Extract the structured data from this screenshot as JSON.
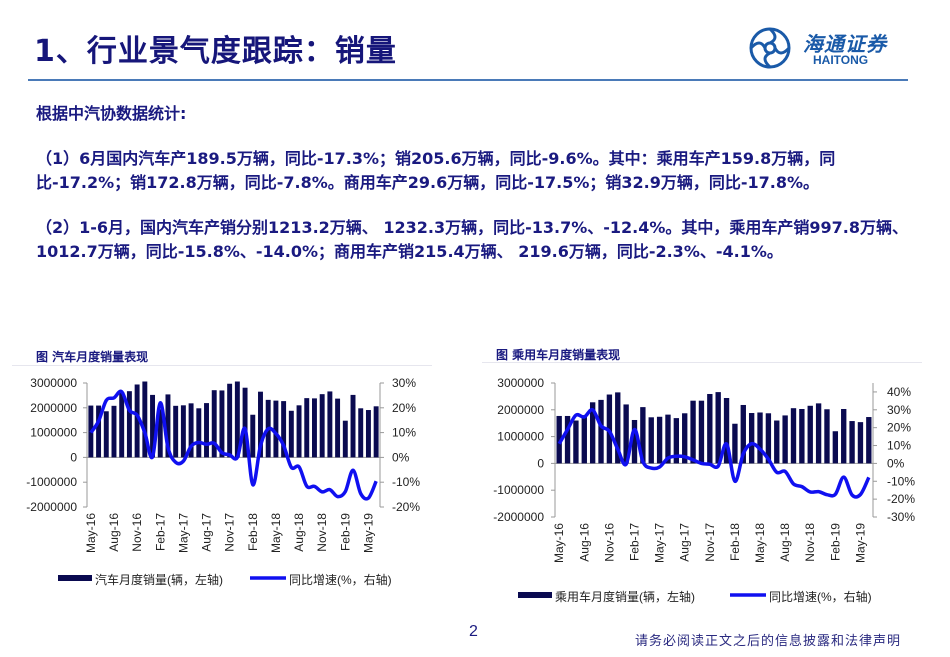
{
  "header": {
    "title": "1、行业景气度跟踪：销量",
    "logo_cn": "海通证券",
    "logo_en": "HAITONG"
  },
  "body": {
    "intro": "根据中汽协数据统计:",
    "para1": "（1）6月国内汽车产189.5万辆，同比-17.3%；销205.6万辆，同比-9.6%。其中：乘用车产159.8万辆，同比-17.2%；销172.8万辆，同比-7.8%。商用车产29.6万辆，同比-17.5%；销32.9万辆，同比-17.8%。",
    "para2": "（2）1-6月，国内汽车产销分别1213.2万辆、 1232.3万辆，同比-13.7%、-12.4%。其中，乘用车产销997.8万辆、1012.7万辆，同比-15.8%、-14.0%；商用车产销215.4万辆、 219.6万辆，同比-2.3%、-4.1%。"
  },
  "colors": {
    "bar": "#0a0a50",
    "line": "#1010f0",
    "text": "#1a1a80",
    "rule": "#4a7ab8"
  },
  "chart_data": [
    {
      "type": "bar+line",
      "title": "图 汽车月度销量表现",
      "categories": [
        "May-16",
        "Jun-16",
        "Jul-16",
        "Aug-16",
        "Sep-16",
        "Oct-16",
        "Nov-16",
        "Dec-16",
        "Jan-17",
        "Feb-17",
        "Mar-17",
        "Apr-17",
        "May-17",
        "Jun-17",
        "Jul-17",
        "Aug-17",
        "Sep-17",
        "Oct-17",
        "Nov-17",
        "Dec-17",
        "Jan-18",
        "Feb-18",
        "Mar-18",
        "Apr-18",
        "May-18",
        "Jun-18",
        "Jul-18",
        "Aug-18",
        "Sep-18",
        "Oct-18",
        "Nov-18",
        "Dec-18",
        "Jan-19",
        "Feb-19",
        "Mar-19",
        "Apr-19",
        "May-19",
        "Jun-19"
      ],
      "x_tick_labels": [
        "May-16",
        "Aug-16",
        "Nov-16",
        "Feb-17",
        "May-17",
        "Aug-17",
        "Nov-17",
        "Feb-18",
        "May-18",
        "Aug-18",
        "Nov-18",
        "Feb-19",
        "May-19"
      ],
      "series": [
        {
          "name": "汽车月度销量(辆，左轴)",
          "type": "bar",
          "axis": "left",
          "values": [
            2090000,
            2090000,
            1860000,
            2080000,
            2630000,
            2670000,
            2940000,
            3060000,
            2520000,
            1940000,
            2540000,
            2080000,
            2100000,
            2180000,
            1980000,
            2190000,
            2710000,
            2700000,
            2970000,
            3060000,
            2810000,
            1720000,
            2650000,
            2320000,
            2290000,
            2270000,
            1880000,
            2100000,
            2390000,
            2380000,
            2550000,
            2660000,
            2370000,
            1480000,
            2520000,
            1980000,
            1910000,
            2060000
          ]
        },
        {
          "name": "同比增速(%，右轴)",
          "type": "line",
          "axis": "right",
          "values": [
            10,
            14.6,
            23,
            24,
            26.5,
            19,
            17,
            10,
            0.2,
            22,
            4,
            -2,
            -1.5,
            4.5,
            6,
            5.3,
            5.7,
            1.9,
            1,
            0,
            11.6,
            -11,
            4.7,
            11.5,
            9.6,
            4.8,
            -4,
            -3.8,
            -11.6,
            -11.7,
            -13.9,
            -13,
            -15.8,
            -13.8,
            -5.2,
            -14.6,
            -16.4,
            -9.6
          ]
        }
      ],
      "left_axis": {
        "range": [
          -2000000,
          3000000
        ],
        "ticks": [
          "3000000",
          "2000000",
          "1000000",
          "0",
          "-1000000",
          "-2000000"
        ]
      },
      "right_axis": {
        "range": [
          -20,
          30
        ],
        "ticks": [
          "30%",
          "20%",
          "10%",
          "0%",
          "-10%",
          "-20%"
        ]
      },
      "legend": "bottom"
    },
    {
      "type": "bar+line",
      "title": "图 乘用车月度销量表现",
      "categories": [
        "May-16",
        "Jun-16",
        "Jul-16",
        "Aug-16",
        "Sep-16",
        "Oct-16",
        "Nov-16",
        "Dec-16",
        "Jan-17",
        "Feb-17",
        "Mar-17",
        "Apr-17",
        "May-17",
        "Jun-17",
        "Jul-17",
        "Aug-17",
        "Sep-17",
        "Oct-17",
        "Nov-17",
        "Dec-17",
        "Jan-18",
        "Feb-18",
        "Mar-18",
        "Apr-18",
        "May-18",
        "Jun-18",
        "Jul-18",
        "Aug-18",
        "Sep-18",
        "Oct-18",
        "Nov-18",
        "Dec-18",
        "Jan-19",
        "Feb-19",
        "Mar-19",
        "Apr-19",
        "May-19",
        "Jun-19"
      ],
      "x_tick_labels": [
        "May-16",
        "Aug-16",
        "Nov-16",
        "Feb-17",
        "May-17",
        "Aug-17",
        "Nov-17",
        "Feb-18",
        "May-18",
        "Aug-18",
        "Nov-18",
        "Feb-19",
        "May-19"
      ],
      "series": [
        {
          "name": "乘用车月度销量(辆，左轴)",
          "type": "bar",
          "axis": "left",
          "values": [
            1770000,
            1770000,
            1600000,
            1800000,
            2280000,
            2370000,
            2570000,
            2650000,
            2200000,
            1620000,
            2100000,
            1720000,
            1740000,
            1820000,
            1690000,
            1870000,
            2340000,
            2340000,
            2590000,
            2660000,
            2440000,
            1480000,
            2180000,
            1880000,
            1900000,
            1870000,
            1600000,
            1790000,
            2060000,
            2030000,
            2150000,
            2240000,
            2020000,
            1200000,
            2030000,
            1580000,
            1540000,
            1730000
          ]
        },
        {
          "name": "同比增速(%，右轴)",
          "type": "line",
          "axis": "right",
          "values": [
            11,
            19,
            27,
            26,
            30,
            21,
            18,
            8,
            -0.5,
            19,
            1,
            -2.6,
            -2,
            3,
            4,
            3.7,
            2,
            0,
            -0.5,
            -1.5,
            10.9,
            -10,
            5.4,
            11,
            8,
            2.4,
            -5,
            -4.5,
            -11.5,
            -13,
            -16,
            -15.8,
            -17.5,
            -17.3,
            -7.7,
            -17.7,
            -17.4,
            -7.8
          ]
        }
      ],
      "left_axis": {
        "range": [
          -2000000,
          3000000
        ],
        "ticks": [
          "3000000",
          "2000000",
          "1000000",
          "0",
          "-1000000",
          "-2000000"
        ]
      },
      "right_axis": {
        "range": [
          -30,
          45
        ],
        "ticks": [
          "40%",
          "30%",
          "20%",
          "10%",
          "0%",
          "-10%",
          "-20%",
          "-30%"
        ]
      },
      "legend": "bottom"
    }
  ],
  "footer": {
    "page_number": "2",
    "disclaimer": "请务必阅读正文之后的信息披露和法律声明"
  }
}
